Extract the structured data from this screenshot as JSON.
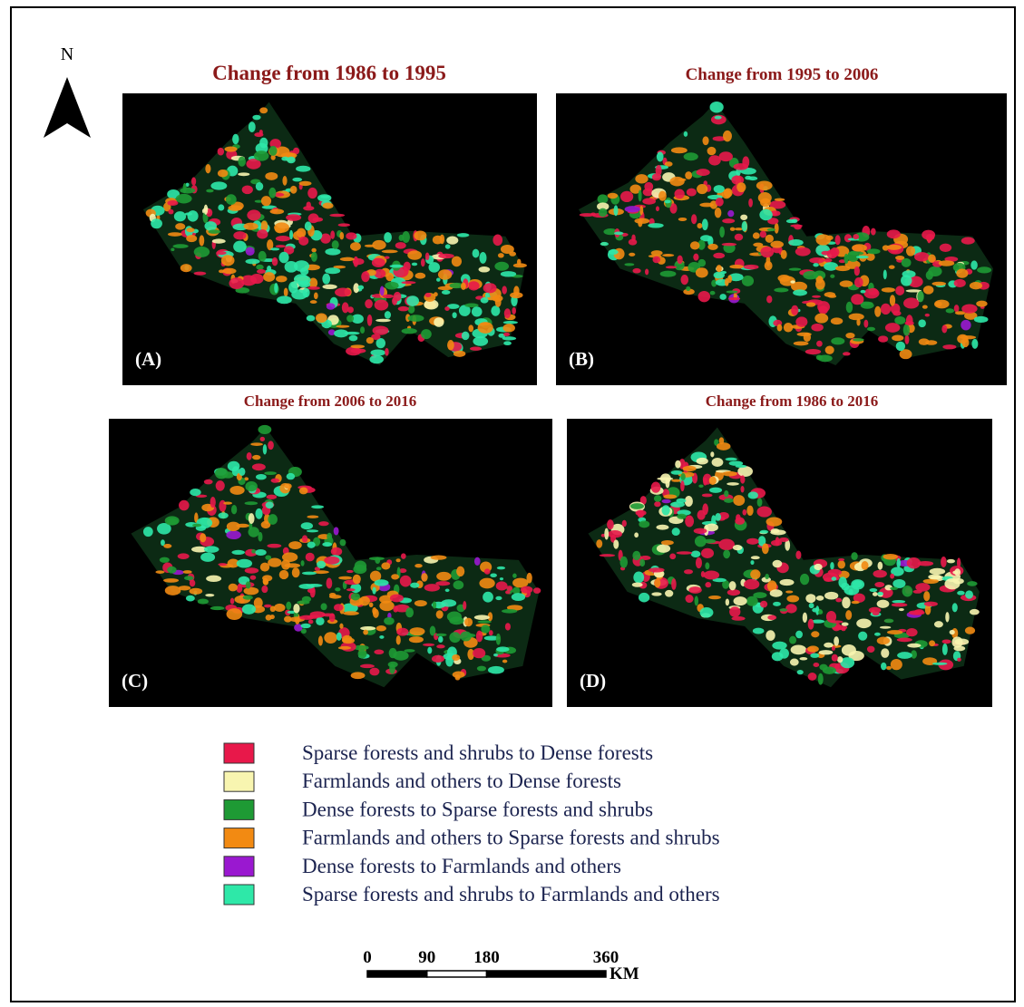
{
  "north": "N",
  "panels": [
    {
      "title": "Change from 1986 to 1995",
      "label": "(A)"
    },
    {
      "title": "Change from 1995 to 2006",
      "label": "(B)"
    },
    {
      "title": "Change from 2006 to 2016",
      "label": "(C)"
    },
    {
      "title": "Change from 1986 to 2016",
      "label": "(D)"
    }
  ],
  "legend": [
    {
      "label": "Sparse forests and shrubs to Dense forests",
      "color": "#e8184a"
    },
    {
      "label": "Farmlands and others to Dense forests",
      "color": "#f8f5b0"
    },
    {
      "label": "Dense forests to Sparse forests and shrubs",
      "color": "#1e9a34"
    },
    {
      "label": "Farmlands and others to Sparse forests and shrubs",
      "color": "#f28a12"
    },
    {
      "label": "Dense forests to Farmlands and others",
      "color": "#9a18d0"
    },
    {
      "label": "Sparse forests and shrubs to Farmlands and others",
      "color": "#2ee8a8"
    }
  ],
  "scale_bar": {
    "ticks": [
      0,
      90,
      180,
      360
    ],
    "unit": "KM"
  }
}
